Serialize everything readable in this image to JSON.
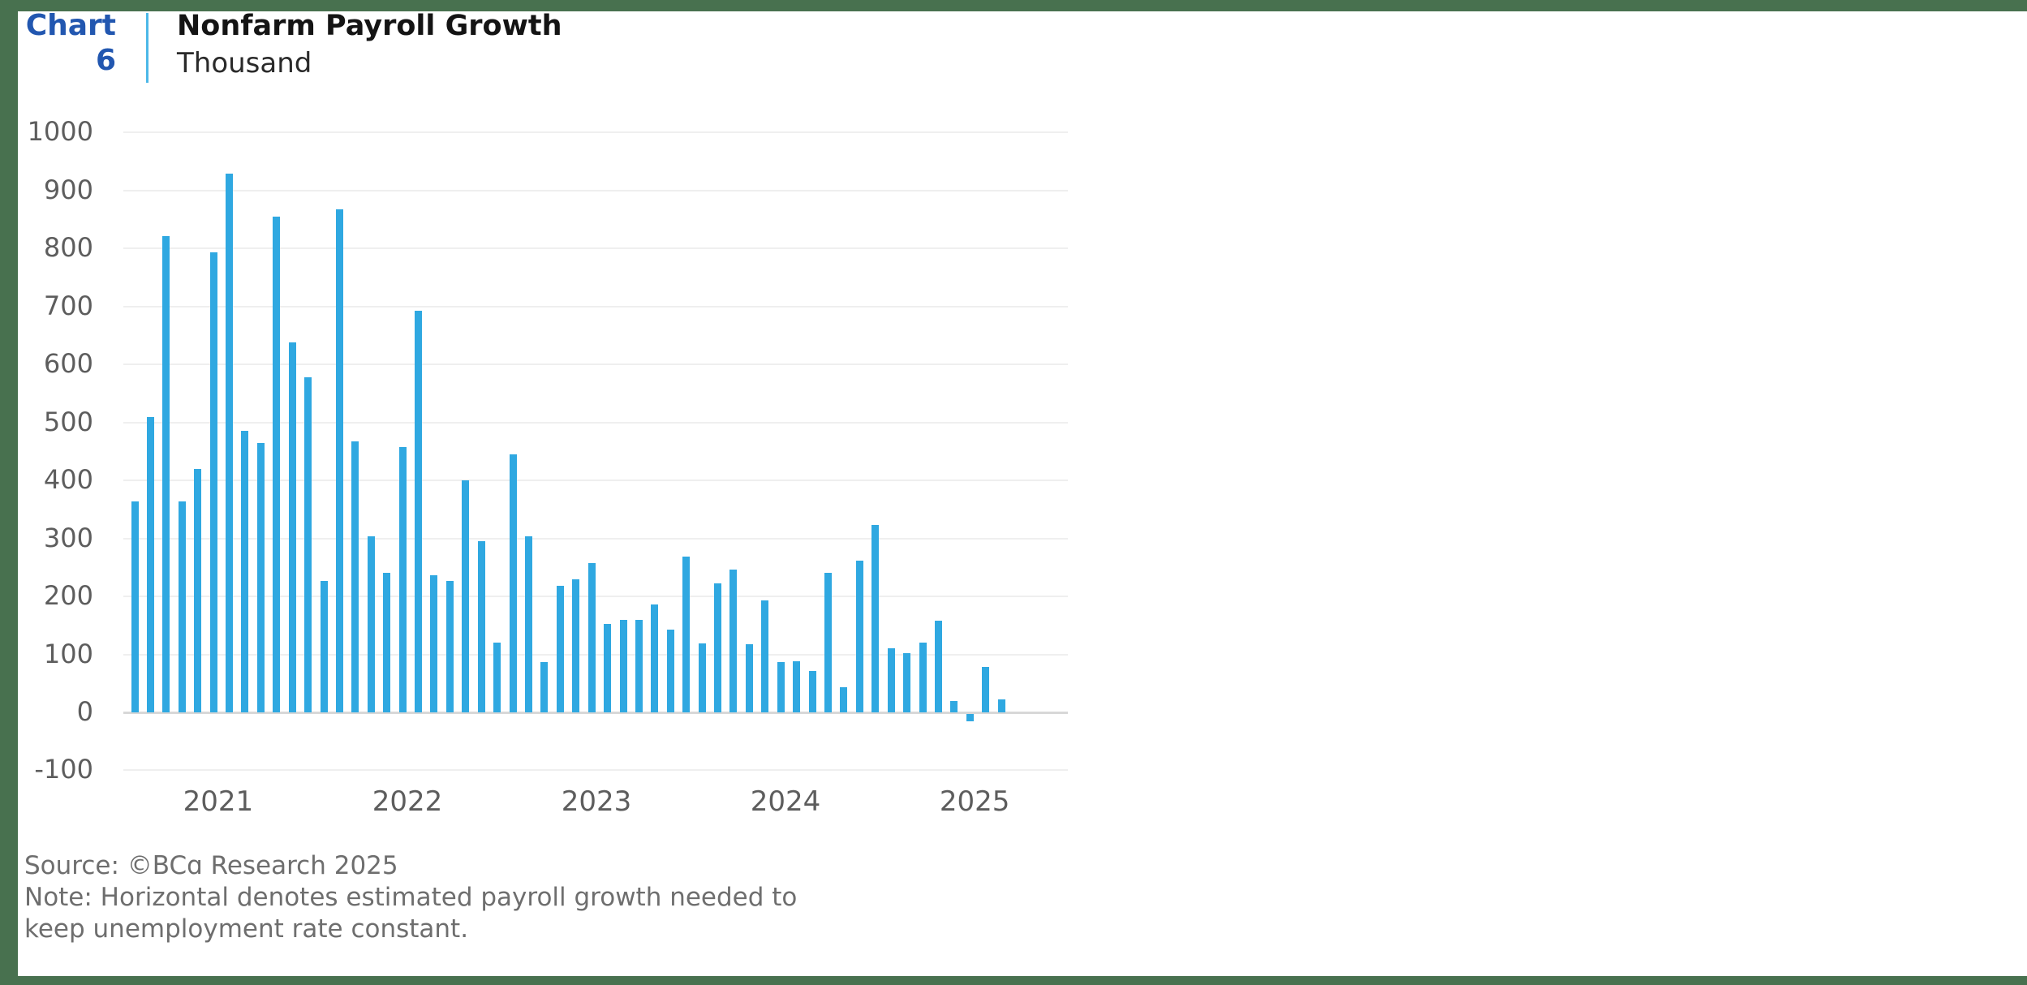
{
  "frame": {
    "border_color": "#48714f"
  },
  "header": {
    "chart_label": "Chart",
    "chart_number": "6",
    "label_color": "#2257b0",
    "divider_color": "#4cb8e8",
    "title": "Nonfarm Payroll Growth",
    "subtitle": "Thousand"
  },
  "chart_data": {
    "type": "bar",
    "title": "Nonfarm Payroll Growth",
    "unit": "Thousand",
    "bar_color": "#2fa8e1",
    "gridline_color": "#efefef",
    "zero_line_color": "#d8d8d8",
    "tick_color": "#5d5d5d",
    "ylim": [
      -100,
      1000
    ],
    "y_ticks": [
      1000,
      900,
      800,
      700,
      600,
      500,
      400,
      300,
      200,
      100,
      0,
      -100
    ],
    "x_tick_labels": [
      "2021",
      "2022",
      "2023",
      "2024",
      "2025"
    ],
    "grid": "horizontal",
    "legend": "none",
    "series": [
      {
        "year": "2021",
        "values": [
          364,
          510,
          822,
          364,
          420,
          793,
          929,
          486,
          464,
          855,
          638,
          578
        ]
      },
      {
        "year": "2022",
        "values": [
          226,
          868,
          468,
          303,
          241,
          458,
          693,
          236,
          227,
          400,
          295,
          120
        ]
      },
      {
        "year": "2023",
        "values": [
          445,
          303,
          87,
          218,
          230,
          257,
          152,
          160,
          160,
          186,
          143,
          268
        ]
      },
      {
        "year": "2024",
        "values": [
          119,
          222,
          246,
          118,
          193,
          87,
          88,
          71,
          240,
          44,
          261,
          323
        ]
      },
      {
        "year": "2025",
        "values": [
          111,
          102,
          120,
          158,
          19,
          -13,
          79,
          22
        ]
      }
    ],
    "note_meaning": "Horizontal denotes estimated payroll growth needed to keep unemployment rate constant."
  },
  "footer": {
    "source": "Source: ©BCɑ Research 2025",
    "note_line1": "Note: Horizontal denotes estimated payroll growth needed to",
    "note_line2": "keep unemployment rate constant."
  }
}
